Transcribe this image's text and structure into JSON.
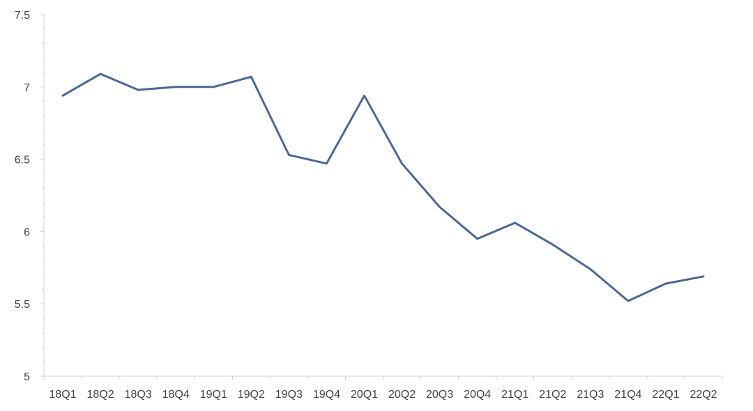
{
  "chart_data": {
    "type": "line",
    "title": "",
    "xlabel": "",
    "ylabel": "",
    "categories": [
      "18Q1",
      "18Q2",
      "18Q3",
      "18Q4",
      "19Q1",
      "19Q2",
      "19Q3",
      "19Q4",
      "20Q1",
      "20Q2",
      "20Q3",
      "20Q4",
      "21Q1",
      "21Q2",
      "21Q3",
      "21Q4",
      "22Q1",
      "22Q2"
    ],
    "series": [
      {
        "values": [
          6.94,
          7.09,
          6.98,
          7.0,
          7.0,
          7.07,
          6.53,
          6.47,
          6.94,
          6.47,
          6.17,
          5.95,
          6.06,
          5.91,
          5.74,
          5.52,
          5.64,
          5.69
        ],
        "color": "#4a6796"
      }
    ],
    "ylim": [
      5,
      7.5
    ],
    "yticks": [
      5,
      5.5,
      6,
      6.5,
      7,
      7.5
    ],
    "ytick_labels": [
      "5",
      "5.5",
      "6",
      "6.5",
      "7",
      "7.5"
    ],
    "grid": false,
    "legend": "none"
  }
}
